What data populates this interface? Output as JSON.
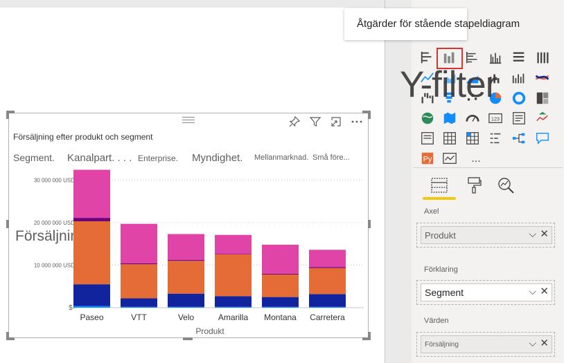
{
  "visual": {
    "title": "Försäljning efter produkt och segment",
    "y_axis_title": "Försäljning",
    "x_axis_title": "Produkt",
    "header_icons": [
      "pin-icon",
      "filter-icon",
      "focus-mode-icon",
      "more-options-icon"
    ]
  },
  "legend": {
    "items": [
      {
        "label": "Segment.",
        "size": "large",
        "color": "#605e5c"
      },
      {
        "label": "Kanalpart. . . .",
        "size": "large",
        "color": "#605e5c"
      },
      {
        "label": "Enterprise.",
        "size": "medium",
        "color": "#605e5c"
      },
      {
        "label": "Myndighet.",
        "size": "large",
        "color": "#605e5c"
      },
      {
        "label": "Mellanmarknad.",
        "size": "small",
        "color": "#605e5c"
      },
      {
        "label": "Små före...",
        "size": "small",
        "color": "#605e5c"
      }
    ]
  },
  "chart_data": {
    "type": "bar",
    "stacked": true,
    "title": "Försäljning efter produkt och segment",
    "xlabel": "Produkt",
    "ylabel": "Försäljning",
    "ylim": [
      0,
      32000000
    ],
    "y_ticks": [
      {
        "value": 0,
        "label": "$-"
      },
      {
        "value": 10000000,
        "label": "10 000 000 USD"
      },
      {
        "value": 20000000,
        "label": "20 000 000 USD"
      },
      {
        "value": 30000000,
        "label": "30 000 000 USD"
      }
    ],
    "grid": true,
    "categories": [
      "Paseo",
      "VTT",
      "Velo",
      "Amarilla",
      "Montana",
      "Carretera"
    ],
    "series": [
      {
        "color": "#118dff",
        "values": [
          400000,
          200000,
          200000,
          200000,
          200000,
          200000
        ]
      },
      {
        "color": "#12239e",
        "values": [
          5100000,
          2000000,
          3100000,
          2500000,
          2300000,
          3000000
        ]
      },
      {
        "color": "#e66c37",
        "values": [
          14800000,
          8000000,
          7700000,
          9800000,
          5300000,
          6100000
        ]
      },
      {
        "color": "#6b007b",
        "values": [
          800000,
          200000,
          200000,
          100000,
          200000,
          200000
        ]
      },
      {
        "color": "#e044a7",
        "values": [
          11300000,
          9300000,
          6100000,
          4500000,
          6800000,
          4100000
        ]
      }
    ]
  },
  "tooltip": {
    "text": "Åtgärder för stående stapeldiagram",
    "tail_text": "stapeldiagram"
  },
  "overlay": {
    "text": "Y-filter"
  },
  "pane": {
    "tabs": [
      "fields-tab",
      "format-tab",
      "analytics-tab"
    ],
    "wells": [
      {
        "label": "Axel",
        "value": "Produkt",
        "style": "grey"
      },
      {
        "label": "Förklaring",
        "value": "Segment",
        "style": "white"
      },
      {
        "label": "Värden",
        "value": "Försäljning",
        "style": "grey-small"
      }
    ],
    "more_visuals": "..."
  },
  "colors": {
    "accent": "#f2c811",
    "selection": "#d9332e"
  }
}
